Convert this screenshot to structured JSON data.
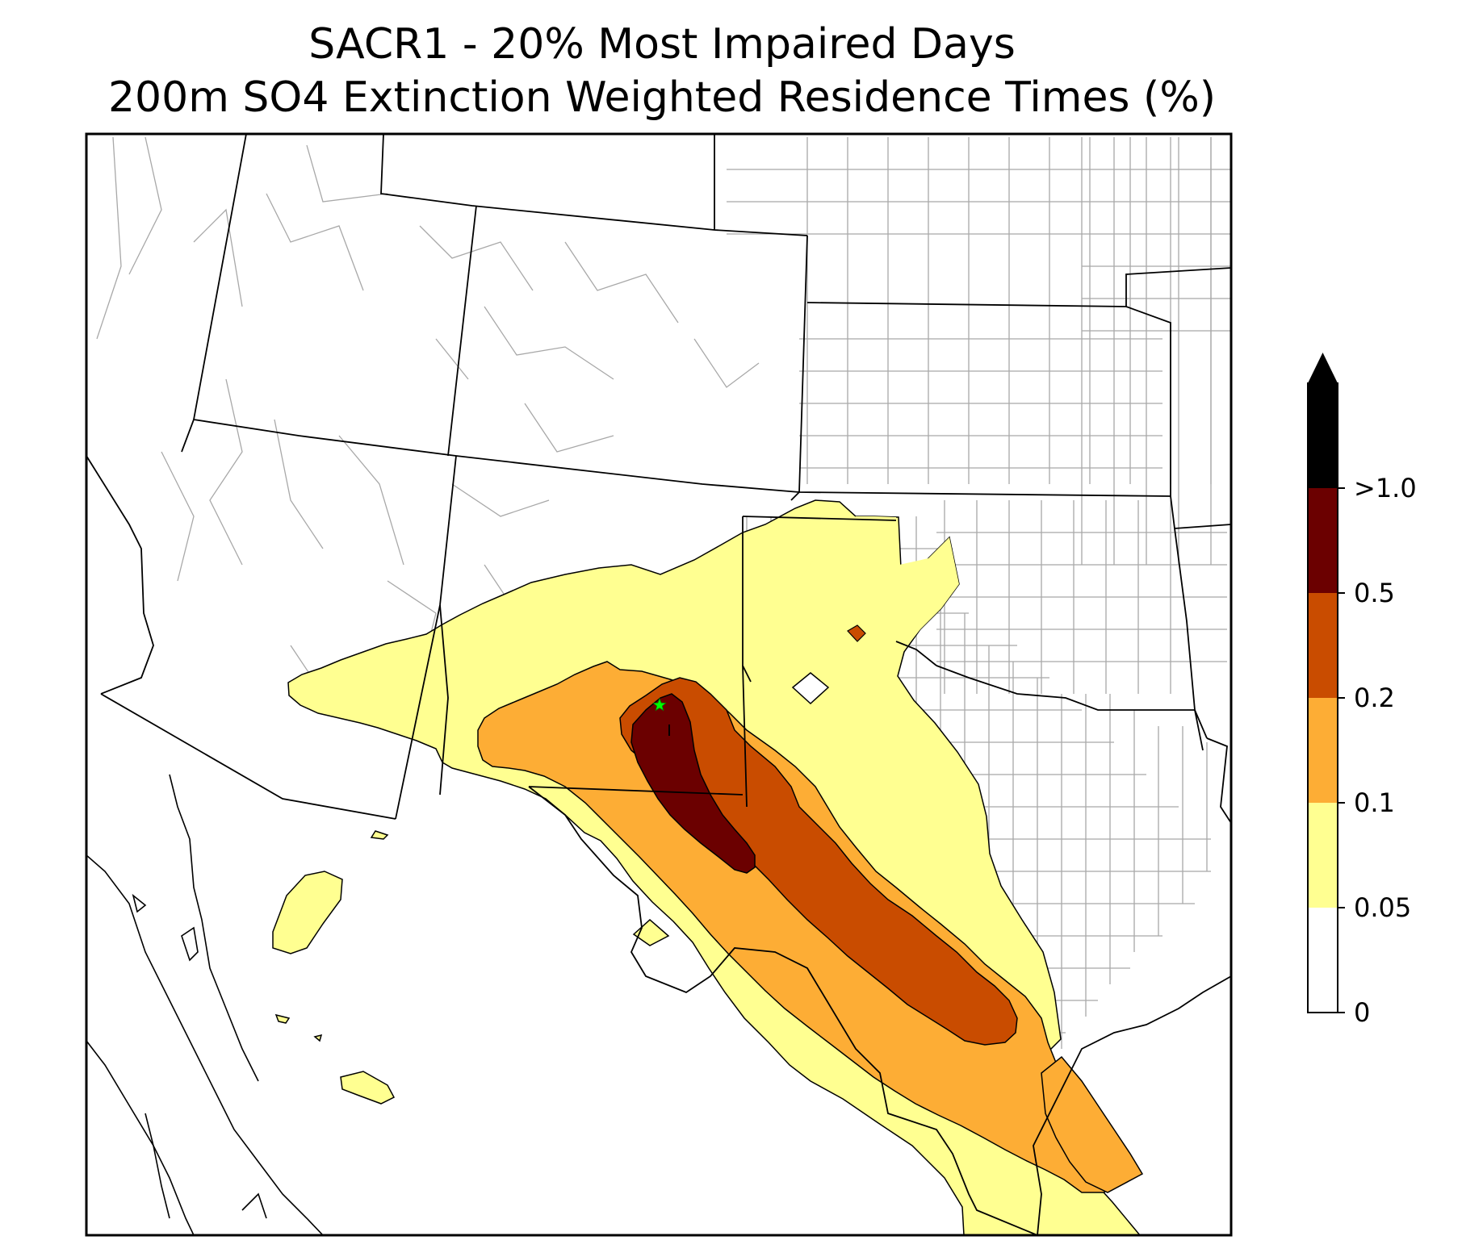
{
  "title": {
    "line1": "SACR1 - 20% Most Impaired Days",
    "line2": "200m SO4 Extinction Weighted Residence Times (%)"
  },
  "colorbar": {
    "levels": [
      {
        "label": "0",
        "color": "#ffffff"
      },
      {
        "label": "0.05",
        "color": "#ffff91"
      },
      {
        "label": "0.1",
        "color": "#fdad35"
      },
      {
        "label": "0.2",
        "color": "#c94c00"
      },
      {
        "label": "0.5",
        "color": "#6b0000"
      },
      {
        "label": ">1.0",
        "color": "#000000"
      }
    ],
    "extend": "max"
  },
  "map": {
    "receptor_marker": {
      "symbol": "star",
      "color": "#00ff00"
    },
    "colors": {
      "state_border": "#000000",
      "county_border": "#a8a8a8",
      "contour_edge": "#000000"
    }
  }
}
